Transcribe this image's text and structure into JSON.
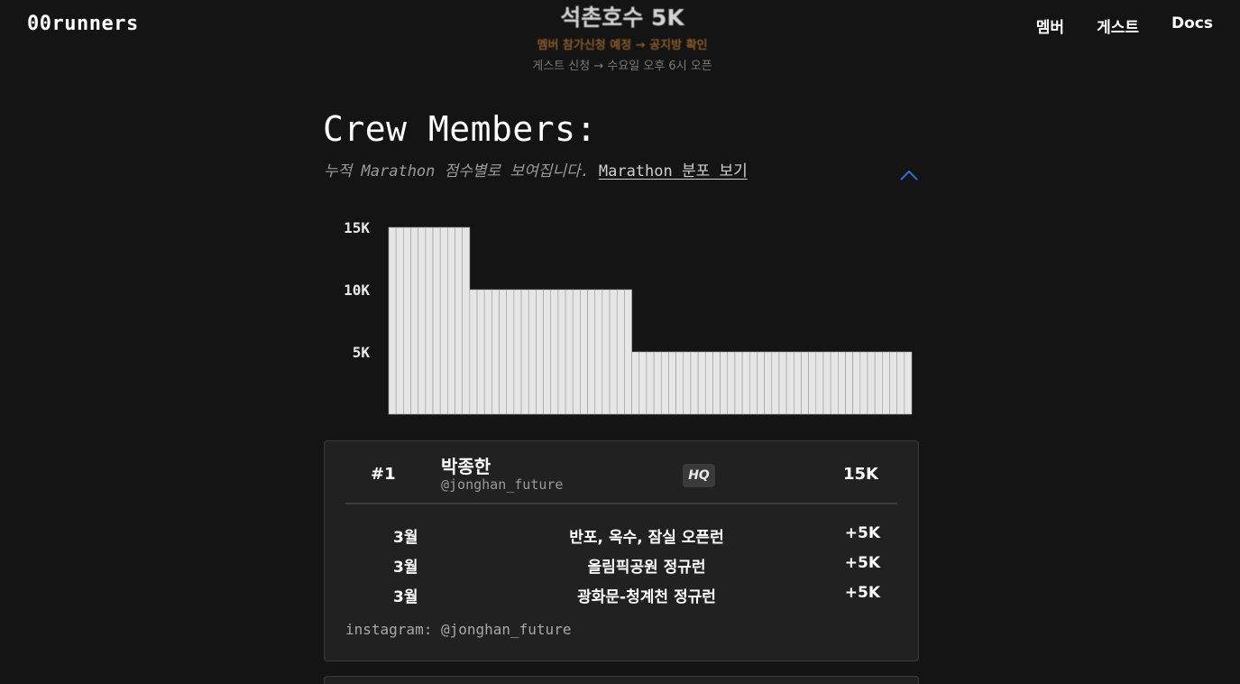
{
  "header": {
    "logo": "00runners",
    "announce_title": "석촌호수 5K",
    "announce_line1": "멤버 참가신청 예정 → 공지방 확인",
    "announce_line2": "게스트 신청 → 수요일 오후 6시 오픈",
    "nav": [
      "멤버",
      "게스트",
      "Docs"
    ]
  },
  "crew": {
    "title": "Crew Members:",
    "subtitle": "누적 Marathon 점수별로 보여집니다.",
    "link": "Marathon 분포 보기",
    "collapse_icon": "chevron-up-icon",
    "accent": "#2f6fd6"
  },
  "chart_data": {
    "type": "bar",
    "y_ticks": [
      "15K",
      "10K",
      "5K"
    ],
    "ylim": [
      0,
      16500
    ],
    "bar_color": "#e6e6e6",
    "values": [
      15000,
      15000,
      15000,
      15000,
      15000,
      15000,
      15000,
      15000,
      15000,
      15000,
      15000,
      10000,
      10000,
      10000,
      10000,
      10000,
      10000,
      10000,
      10000,
      10000,
      10000,
      10000,
      10000,
      10000,
      10000,
      10000,
      10000,
      10000,
      10000,
      10000,
      10000,
      10000,
      10000,
      5000,
      5000,
      5000,
      5000,
      5000,
      5000,
      5000,
      5000,
      5000,
      5000,
      5000,
      5000,
      5000,
      5000,
      5000,
      5000,
      5000,
      5000,
      5000,
      5000,
      5000,
      5000,
      5000,
      5000,
      5000,
      5000,
      5000,
      5000,
      5000,
      5000,
      5000,
      5000,
      5000,
      5000,
      5000,
      5000,
      5000,
      5000
    ]
  },
  "member": {
    "rank": "#1",
    "name": "박종한",
    "handle": "@jonghan_future",
    "badge": "HQ",
    "score": "15K",
    "races": [
      {
        "month": "3월",
        "name": "반포, 옥수, 잠실 오픈런",
        "points": "+5K"
      },
      {
        "month": "3월",
        "name": "올림픽공원 정규런",
        "points": "+5K"
      },
      {
        "month": "3월",
        "name": "광화문-청계천 정규런",
        "points": "+5K"
      }
    ],
    "instagram": "instagram: @jonghan_future"
  }
}
